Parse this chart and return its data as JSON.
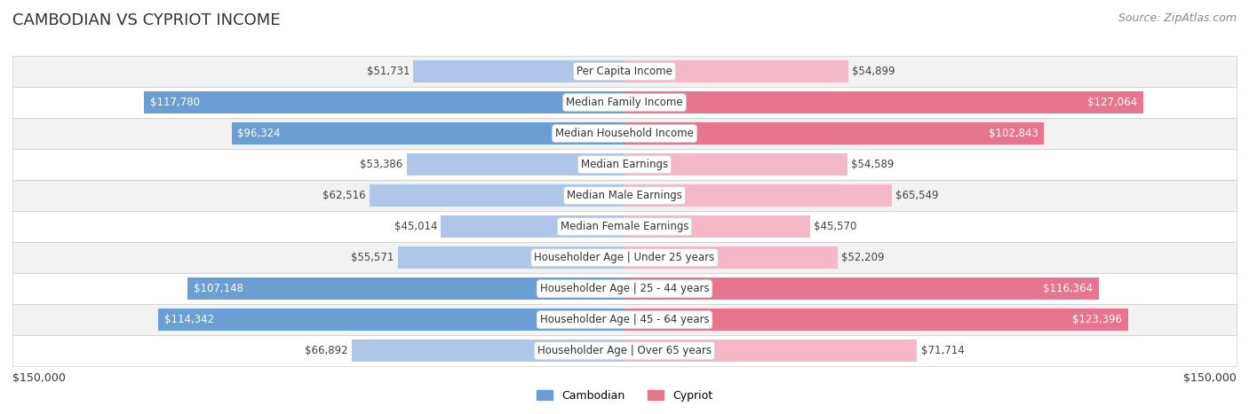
{
  "title": "CAMBODIAN VS CYPRIOT INCOME",
  "source": "Source: ZipAtlas.com",
  "categories": [
    "Per Capita Income",
    "Median Family Income",
    "Median Household Income",
    "Median Earnings",
    "Median Male Earnings",
    "Median Female Earnings",
    "Householder Age | Under 25 years",
    "Householder Age | 25 - 44 years",
    "Householder Age | 45 - 64 years",
    "Householder Age | Over 65 years"
  ],
  "cambodian_values": [
    51731,
    117780,
    96324,
    53386,
    62516,
    45014,
    55571,
    107148,
    114342,
    66892
  ],
  "cypriot_values": [
    54899,
    127064,
    102843,
    54589,
    65549,
    45570,
    52209,
    116364,
    123396,
    71714
  ],
  "cambodian_labels": [
    "$51,731",
    "$117,780",
    "$96,324",
    "$53,386",
    "$62,516",
    "$45,014",
    "$55,571",
    "$107,148",
    "$114,342",
    "$66,892"
  ],
  "cypriot_labels": [
    "$54,899",
    "$127,064",
    "$102,843",
    "$54,589",
    "$65,549",
    "$45,570",
    "$52,209",
    "$116,364",
    "$123,396",
    "$71,714"
  ],
  "max_value": 150000,
  "cambodian_color_light": "#aec6e8",
  "cambodian_color_dark": "#6b9ed2",
  "cypriot_color_light": "#f4b8c8",
  "cypriot_color_dark": "#e8758f",
  "row_bg_even": "#f2f2f2",
  "row_bg_odd": "#ffffff",
  "legend_cambodian_color": "#6b9ed2",
  "legend_cypriot_color": "#e8758f",
  "axis_label_left": "$150,000",
  "axis_label_right": "$150,000",
  "title_fontsize": 13,
  "source_fontsize": 9,
  "bar_label_fontsize": 8.5,
  "category_label_fontsize": 8.5,
  "legend_fontsize": 9,
  "threshold": 80000
}
